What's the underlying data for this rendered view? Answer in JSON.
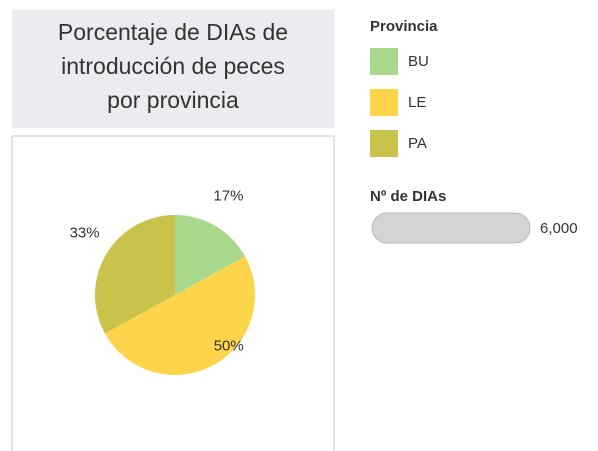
{
  "chart_data": {
    "type": "pie",
    "title": [
      "Porcentaje de DIAs de",
      "introducción de peces",
      "por provincia"
    ],
    "categories": [
      "BU",
      "LE",
      "PA"
    ],
    "values": [
      17,
      50,
      33
    ],
    "value_labels": [
      "17%",
      "50%",
      "33%"
    ],
    "colors": [
      "#a8d88c",
      "#fdd54a",
      "#c9c24b"
    ],
    "legend_title": "Provincia",
    "size_legend": {
      "title": "Nº de DIAs",
      "value": 6000,
      "label": "6,000"
    }
  }
}
